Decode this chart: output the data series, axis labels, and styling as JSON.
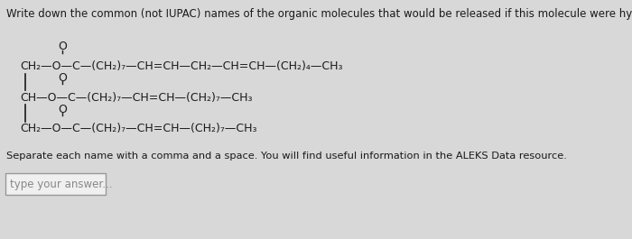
{
  "title": "Write down the common (not IUPAC) names of the organic molecules that would be released if this molecule were hydrolyzed:",
  "line1": "CH₂—O—C—(CH₂)₇—CH=CH—CH₂—CH=CH—(CH₂)₄—CH₃",
  "line2": "CH—O—C—(CH₂)₇—CH=CH—(CH₂)₇—CH₃",
  "line3": "CH₂—O—C—(CH₂)₇—CH=CH—(CH₂)₇—CH₃",
  "note": "Separate each name with a comma and a space. You will find useful information in the ALEKS Data resource.",
  "input_placeholder": "type your answer...",
  "bg_color": "#d8d8d8",
  "text_color": "#1a1a1a",
  "font_size_title": 8.5,
  "font_size_body": 9.0,
  "font_size_note": 8.2,
  "font_size_placeholder": 8.5,
  "o_fontsize": 9.0
}
